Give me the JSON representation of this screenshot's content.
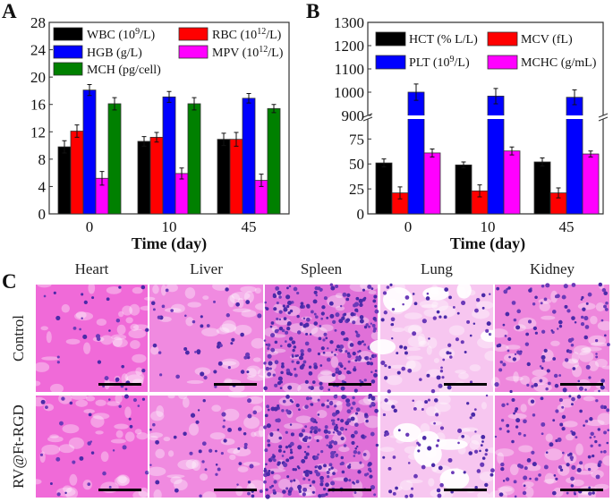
{
  "panel_labels": {
    "a": "A",
    "b": "B",
    "c": "C"
  },
  "chart_data": [
    {
      "panel": "A",
      "type": "bar",
      "xlabel": "Time (day)",
      "ylabel": "",
      "categories": [
        "0",
        "10",
        "45"
      ],
      "ylim": [
        0,
        28
      ],
      "yticks": [
        "0",
        "4",
        "8",
        "12",
        "16",
        "20",
        "24",
        "28"
      ],
      "legend_placement": "top",
      "series": [
        {
          "name": "WBC (10",
          "sup": "9",
          "tail": "/L)",
          "color": "#000000",
          "values": [
            9.8,
            10.6,
            10.9
          ],
          "errors": [
            0.9,
            0.7,
            0.9
          ]
        },
        {
          "name": "RBC (10",
          "sup": "12",
          "tail": "/L)",
          "color": "#ff0000",
          "values": [
            12.1,
            11.2,
            10.9
          ],
          "errors": [
            0.9,
            0.7,
            1.0
          ]
        },
        {
          "name": "HGB (g/L)",
          "sup": "",
          "tail": "",
          "color": "#0000ff",
          "values": [
            18.1,
            17.1,
            16.9
          ],
          "errors": [
            0.8,
            0.8,
            0.7
          ]
        },
        {
          "name": "MPV (10",
          "sup": "12",
          "tail": "/L)",
          "color": "#ff00ff",
          "values": [
            5.2,
            5.9,
            4.9
          ],
          "errors": [
            1.0,
            0.8,
            0.9
          ]
        },
        {
          "name": "MCH (pg/cell)",
          "sup": "",
          "tail": "",
          "color": "#008000",
          "values": [
            16.1,
            16.1,
            15.4
          ],
          "errors": [
            0.9,
            0.9,
            0.6
          ]
        }
      ]
    },
    {
      "panel": "B",
      "type": "bar",
      "xlabel": "Time (day)",
      "ylabel": "",
      "categories": [
        "0",
        "10",
        "45"
      ],
      "broken_axis": {
        "lower": [
          0,
          95
        ],
        "upper": [
          900,
          1300
        ]
      },
      "yticks_lower": [
        "0",
        "25",
        "50",
        "75"
      ],
      "yticks_upper": [
        "900",
        "1000",
        "1100",
        "1200",
        "1300"
      ],
      "legend_placement": "top",
      "series": [
        {
          "name": "HCT (% L/L)",
          "sup": "",
          "tail": "",
          "color": "#000000",
          "values": [
            51,
            49,
            52
          ],
          "errors": [
            4,
            3,
            4
          ]
        },
        {
          "name": "MCV (fL)",
          "sup": "",
          "tail": "",
          "color": "#ff0000",
          "values": [
            21,
            23,
            21
          ],
          "errors": [
            6,
            6,
            5
          ]
        },
        {
          "name": "PLT (10",
          "sup": "9",
          "tail": "/L)",
          "color": "#0000ff",
          "values": [
            1000,
            983,
            978
          ],
          "errors": [
            35,
            33,
            32
          ]
        },
        {
          "name": "MCHC (g/mL)",
          "sup": "",
          "tail": "",
          "color": "#ff00ff",
          "values": [
            61,
            63,
            60
          ],
          "errors": [
            4,
            4,
            3
          ]
        }
      ]
    }
  ],
  "histology": {
    "columns": [
      "Heart",
      "Liver",
      "Spleen",
      "Lung",
      "Kidney"
    ],
    "rows": [
      "Control",
      "RV@Ft-RGD"
    ]
  }
}
